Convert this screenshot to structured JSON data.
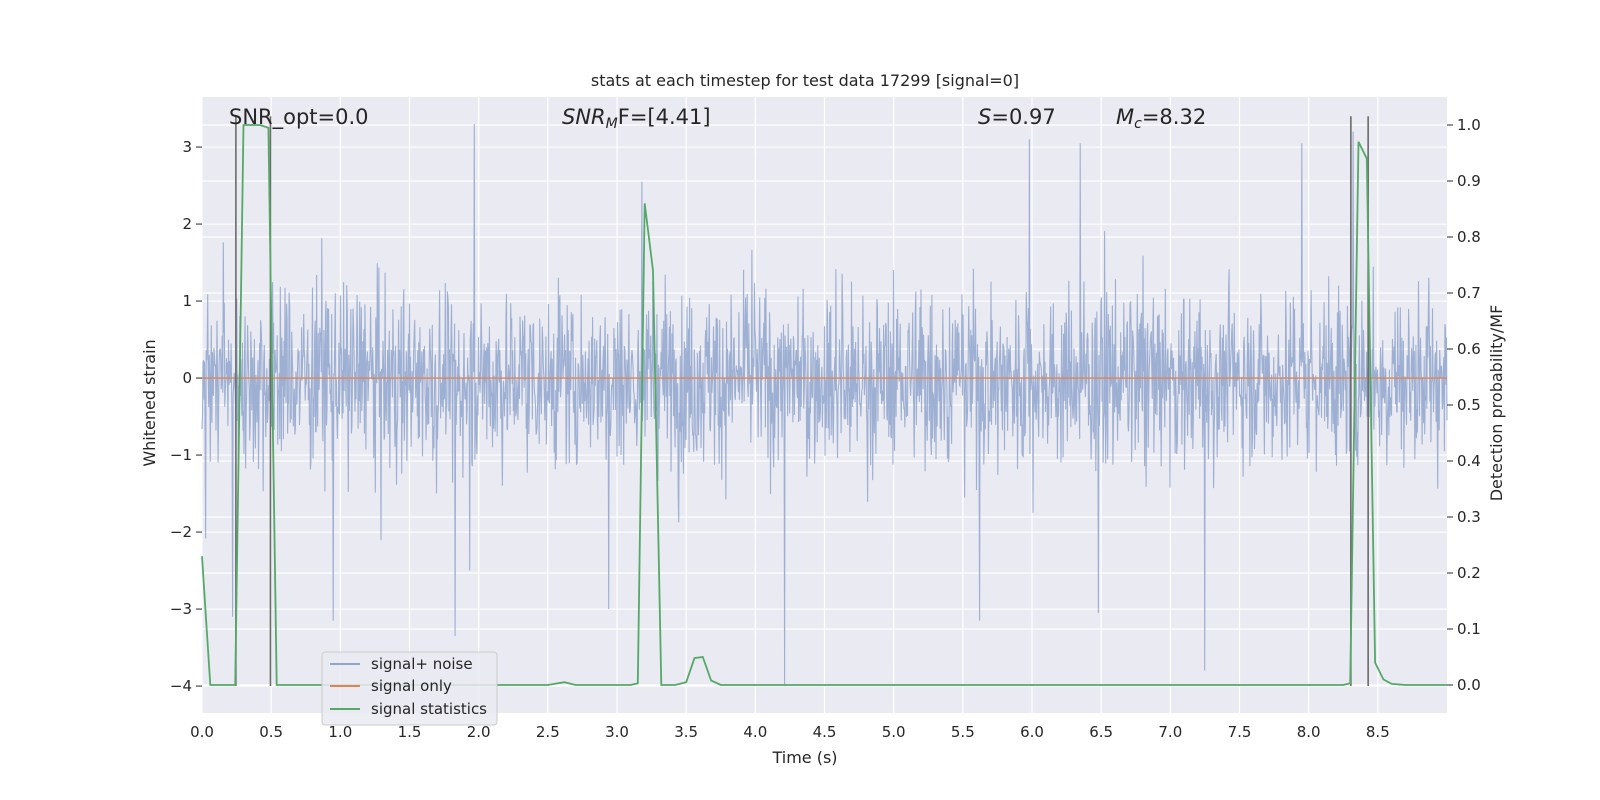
{
  "chart_data": {
    "type": "line",
    "title": "stats at each timestep for test data 17299 [signal=0]",
    "xlabel": "Time (s)",
    "ylabel_left": "Whitened strain",
    "ylabel_right": "Detection probability/MF",
    "xlim": [
      0.0,
      9.0
    ],
    "ylim_left": [
      -4.35,
      3.65
    ],
    "ylim_right": [
      -0.05,
      1.05
    ],
    "x_ticks": [
      0.0,
      0.5,
      1.0,
      1.5,
      2.0,
      2.5,
      3.0,
      3.5,
      4.0,
      4.5,
      5.0,
      5.5,
      6.0,
      6.5,
      7.0,
      7.5,
      8.0,
      8.5
    ],
    "x_tick_labels": [
      "0.0",
      "0.5",
      "1.0",
      "1.5",
      "2.0",
      "2.5",
      "3.0",
      "3.5",
      "4.0",
      "4.5",
      "5.0",
      "5.5",
      "6.0",
      "6.5",
      "7.0",
      "7.5",
      "8.0",
      "8.5"
    ],
    "y_left_ticks": [
      -4,
      -3,
      -2,
      -1,
      0,
      1,
      2,
      3
    ],
    "y_left_tick_labels": [
      "−4",
      "−3",
      "−2",
      "−1",
      "0",
      "1",
      "2",
      "3"
    ],
    "y_right_ticks": [
      0.0,
      0.1,
      0.2,
      0.3,
      0.4,
      0.5,
      0.6,
      0.7,
      0.8,
      0.9,
      1.0
    ],
    "y_right_tick_labels": [
      "0.0",
      "0.1",
      "0.2",
      "0.3",
      "0.4",
      "0.5",
      "0.6",
      "0.7",
      "0.8",
      "0.9",
      "1.0"
    ],
    "grid": true,
    "legend_position": "lower-left",
    "annotations": {
      "snr_opt": "SNR_opt=0.0",
      "snr_mf_name": "SNR",
      "snr_mf_sub": "M",
      "snr_mf_tail": "F=[4.41]",
      "s_name": "S",
      "s_value": "=0.97",
      "mc_name": "M",
      "mc_sub": "c",
      "mc_value": "=8.32"
    },
    "series": [
      {
        "name": "signal+ noise",
        "axis": "left",
        "color": "#8fa5cc",
        "kind": "noise",
        "x_range": [
          0.0,
          9.0
        ],
        "typical_extent": [
          -1.6,
          1.7
        ],
        "peaks": [
          [
            0.22,
            -3.1
          ],
          [
            0.95,
            -3.15
          ],
          [
            1.83,
            -3.35
          ],
          [
            1.97,
            3.3
          ],
          [
            2.94,
            -3.0
          ],
          [
            3.18,
            2.55
          ],
          [
            4.21,
            -4.0
          ],
          [
            5.62,
            -3.15
          ],
          [
            5.98,
            3.1
          ],
          [
            6.35,
            3.05
          ],
          [
            6.48,
            -3.05
          ],
          [
            7.25,
            -3.8
          ],
          [
            7.95,
            3.05
          ],
          [
            8.32,
            3.2
          ]
        ]
      },
      {
        "name": "signal only",
        "axis": "left",
        "color": "#dd8452",
        "x": [
          0.0,
          9.0
        ],
        "y": [
          0.0,
          0.0
        ]
      },
      {
        "name": "signal statistics",
        "axis": "right",
        "color": "#55a868",
        "x": [
          0.0,
          0.06,
          0.12,
          0.18,
          0.24,
          0.3,
          0.36,
          0.42,
          0.48,
          0.54,
          0.6,
          2.5,
          2.62,
          2.7,
          3.1,
          3.15,
          3.2,
          3.26,
          3.32,
          3.42,
          3.5,
          3.56,
          3.62,
          3.68,
          3.75,
          3.85,
          8.25,
          8.3,
          8.36,
          8.42,
          8.48,
          8.54,
          8.6,
          8.7,
          9.0
        ],
        "y": [
          0.23,
          0.0,
          0.0,
          0.0,
          0.0,
          1.0,
          1.0,
          1.0,
          0.995,
          0.0,
          0.0,
          0.0,
          0.005,
          0.0,
          0.0,
          0.003,
          0.86,
          0.74,
          0.0,
          0.0,
          0.005,
          0.048,
          0.05,
          0.008,
          0.0,
          0.0,
          0.0,
          0.003,
          0.97,
          0.94,
          0.04,
          0.01,
          0.002,
          0.0,
          0.0
        ]
      }
    ],
    "marker_lines": [
      {
        "x": 0.245,
        "y": [
          -4.0,
          3.4
        ]
      },
      {
        "x": 0.495,
        "y": [
          -4.0,
          3.4
        ]
      },
      {
        "x": 8.305,
        "y": [
          -4.0,
          3.4
        ]
      },
      {
        "x": 8.43,
        "y": [
          -4.0,
          3.4
        ]
      }
    ],
    "colors": {
      "plot_bg": "#eaeaf2",
      "grid": "#ffffff",
      "marker_line": "#6b6b6b"
    }
  }
}
